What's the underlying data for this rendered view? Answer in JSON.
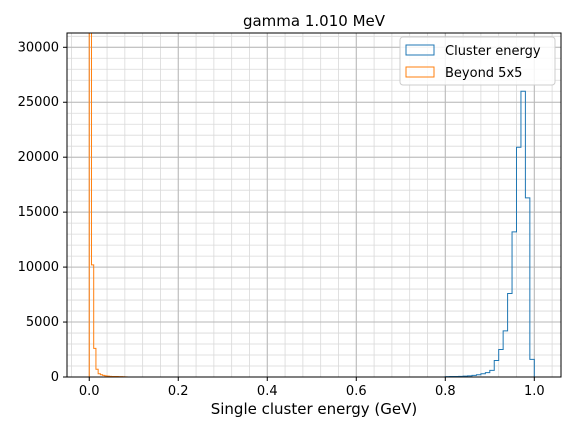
{
  "chart_data": {
    "type": "histogram",
    "title": "gamma 1.010 MeV",
    "xlabel": "Single cluster energy (GeV)",
    "ylabel": "",
    "xlim": [
      -0.05,
      1.06
    ],
    "ylim": [
      0,
      31300
    ],
    "x_ticks": [
      0.0,
      0.2,
      0.4,
      0.6,
      0.8,
      1.0
    ],
    "x_tick_labels": [
      "0.0",
      "0.2",
      "0.4",
      "0.6",
      "0.8",
      "1.0"
    ],
    "y_ticks": [
      0,
      5000,
      10000,
      15000,
      20000,
      25000,
      30000
    ],
    "y_tick_labels": [
      "0",
      "5000",
      "10000",
      "15000",
      "20000",
      "25000",
      "30000"
    ],
    "grid": "major and minor",
    "legend_position": "top-right",
    "series": [
      {
        "name": "Cluster energy",
        "color": "#1f77b4",
        "bin_edges": [
          0.8,
          0.81,
          0.82,
          0.83,
          0.84,
          0.85,
          0.86,
          0.87,
          0.88,
          0.89,
          0.9,
          0.91,
          0.92,
          0.93,
          0.94,
          0.95,
          0.96,
          0.97,
          0.98,
          0.99,
          1.0,
          1.01
        ],
        "counts": [
          30,
          40,
          50,
          60,
          80,
          100,
          150,
          200,
          300,
          400,
          600,
          1500,
          2500,
          4200,
          7600,
          13200,
          20900,
          26000,
          16300,
          1600,
          0
        ]
      },
      {
        "name": "Beyond 5x5",
        "color": "#ff7f0e",
        "bin_edges": [
          0.0,
          0.005,
          0.01,
          0.015,
          0.02,
          0.025,
          0.03,
          0.035,
          0.04,
          0.045,
          0.05,
          0.055,
          0.06,
          0.065,
          0.07,
          0.075,
          0.08,
          0.085
        ],
        "counts": [
          31300,
          10200,
          2600,
          700,
          300,
          200,
          150,
          100,
          80,
          60,
          50,
          40,
          40,
          30,
          30,
          20,
          10
        ]
      }
    ]
  }
}
